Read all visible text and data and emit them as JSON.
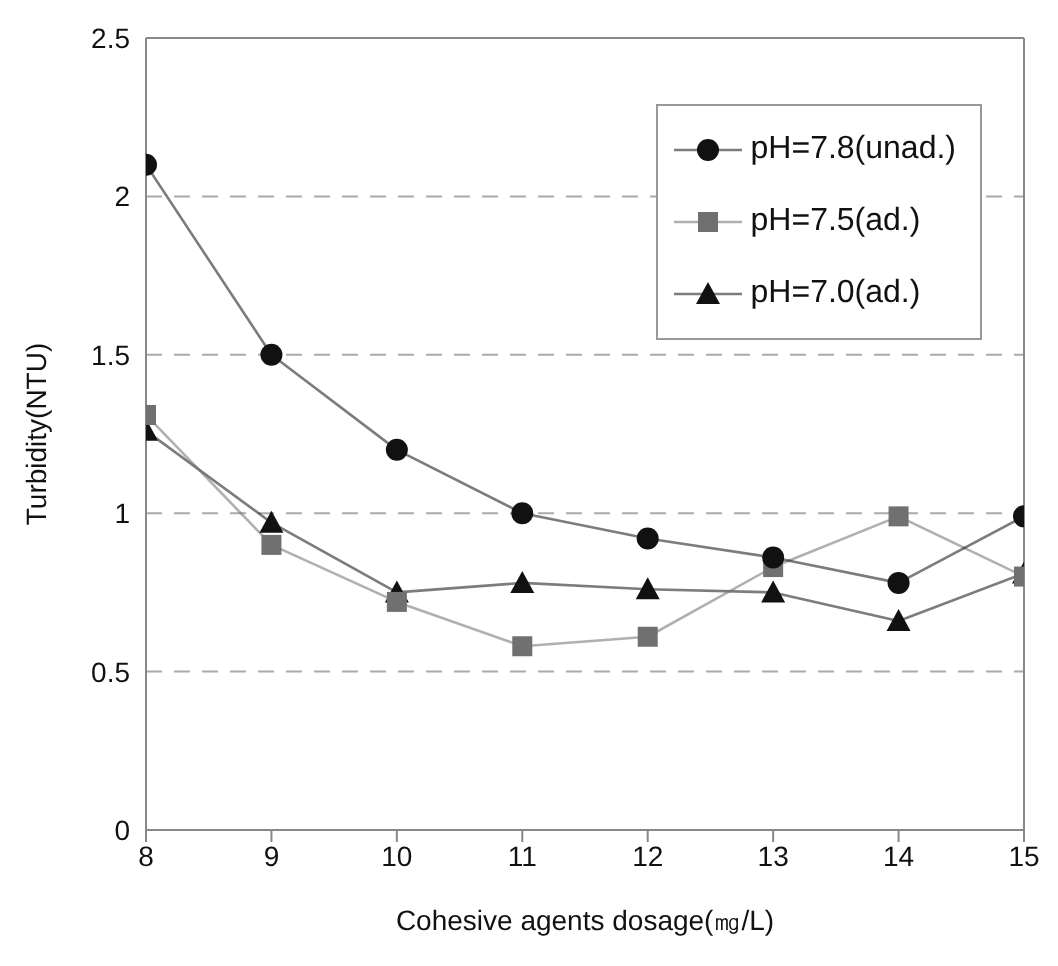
{
  "chart_data": {
    "type": "line",
    "xlabel": "Cohesive agents dosage(㎎/L)",
    "ylabel": "Turbidity(NTU)",
    "x": [
      8,
      9,
      10,
      11,
      12,
      13,
      14,
      15
    ],
    "xlim": [
      8,
      15
    ],
    "xticks": [
      8,
      9,
      10,
      11,
      12,
      13,
      14,
      15
    ],
    "ylim": [
      0,
      2.5
    ],
    "yticks": [
      0,
      0.5,
      1,
      1.5,
      2,
      2.5
    ],
    "grid": "y",
    "legend": "top right",
    "line_style": "solid",
    "series": [
      {
        "name": "pH=7.8(unad.)",
        "color": "#111111",
        "marker": "circle",
        "values": [
          2.1,
          1.5,
          1.2,
          1.0,
          0.92,
          0.86,
          0.78,
          0.99
        ]
      },
      {
        "name": "pH=7.5(ad.)",
        "color": "#707070",
        "marker": "square",
        "values": [
          1.31,
          0.9,
          0.72,
          0.58,
          0.61,
          0.83,
          0.99,
          0.8
        ]
      },
      {
        "name": "pH=7.0(ad.)",
        "color": "#111111",
        "marker": "triangle",
        "values": [
          1.26,
          0.97,
          0.75,
          0.78,
          0.76,
          0.75,
          0.66,
          0.81
        ]
      }
    ]
  }
}
